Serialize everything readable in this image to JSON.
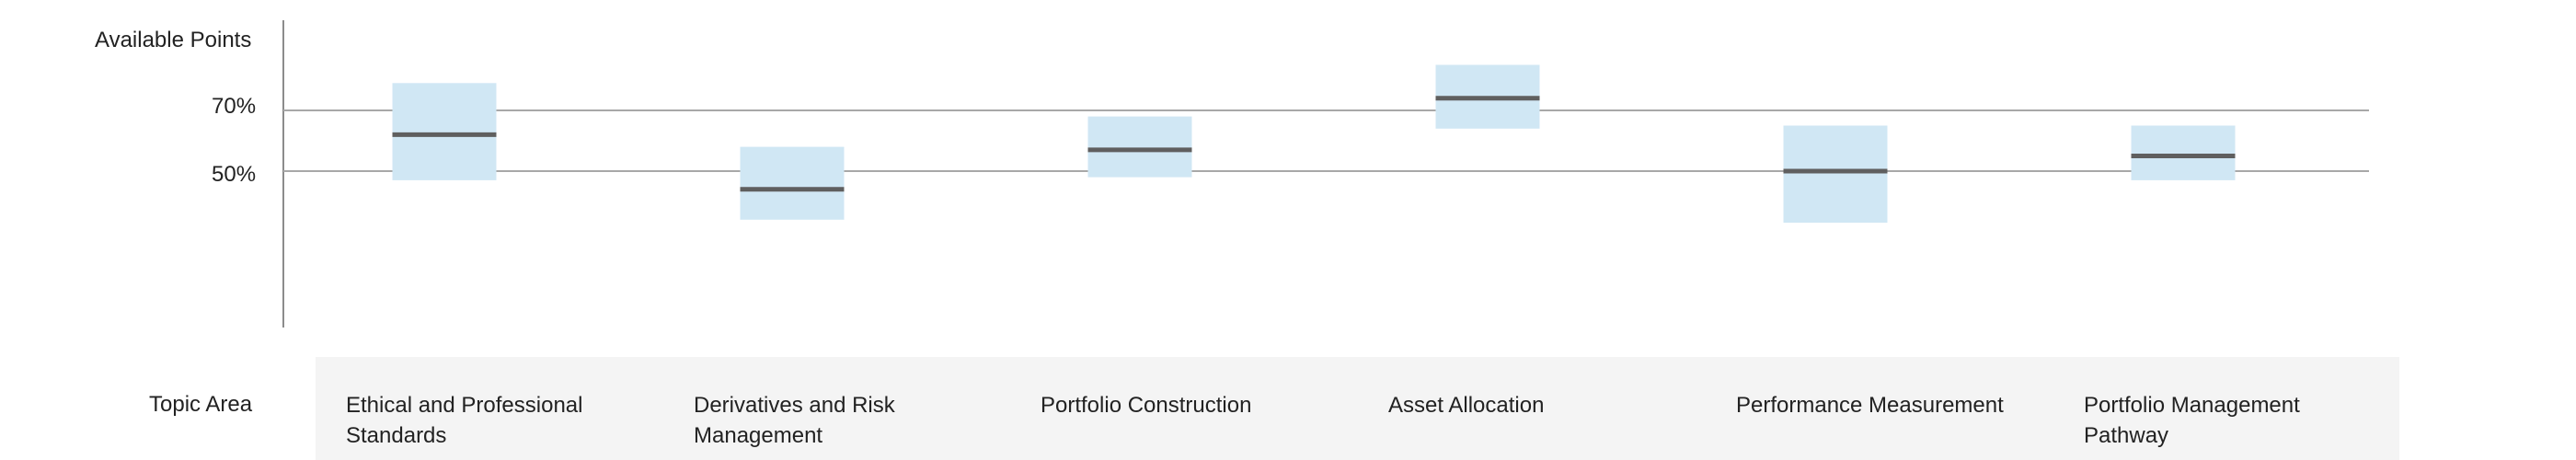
{
  "chart_data": {
    "type": "boxplot",
    "ylabel": "Available Points",
    "xlabel": "Topic Area",
    "yticks": [
      "70%",
      "50%"
    ],
    "ytick_values": [
      70,
      50
    ],
    "ylim": [
      0,
      100
    ],
    "categories": [
      "Ethical and Professional Standards",
      "Derivatives and Risk Management",
      "Portfolio Construction",
      "Asset Allocation",
      "Performance Measurement",
      "Portfolio Management Pathway"
    ],
    "ranges": [
      {
        "low": 47,
        "high": 79,
        "mid": 62
      },
      {
        "low": 34,
        "high": 58,
        "mid": 44
      },
      {
        "low": 48,
        "high": 68,
        "mid": 57
      },
      {
        "low": 64,
        "high": 85,
        "mid": 74
      },
      {
        "low": 33,
        "high": 65,
        "mid": 50
      },
      {
        "low": 47,
        "high": 65,
        "mid": 55
      }
    ],
    "colors": {
      "box": "#d0e7f4",
      "median": "#5f5f5f",
      "gridline": "#a8a8a8",
      "axis": "#8c8c8c",
      "band": "#f4f4f4"
    }
  }
}
